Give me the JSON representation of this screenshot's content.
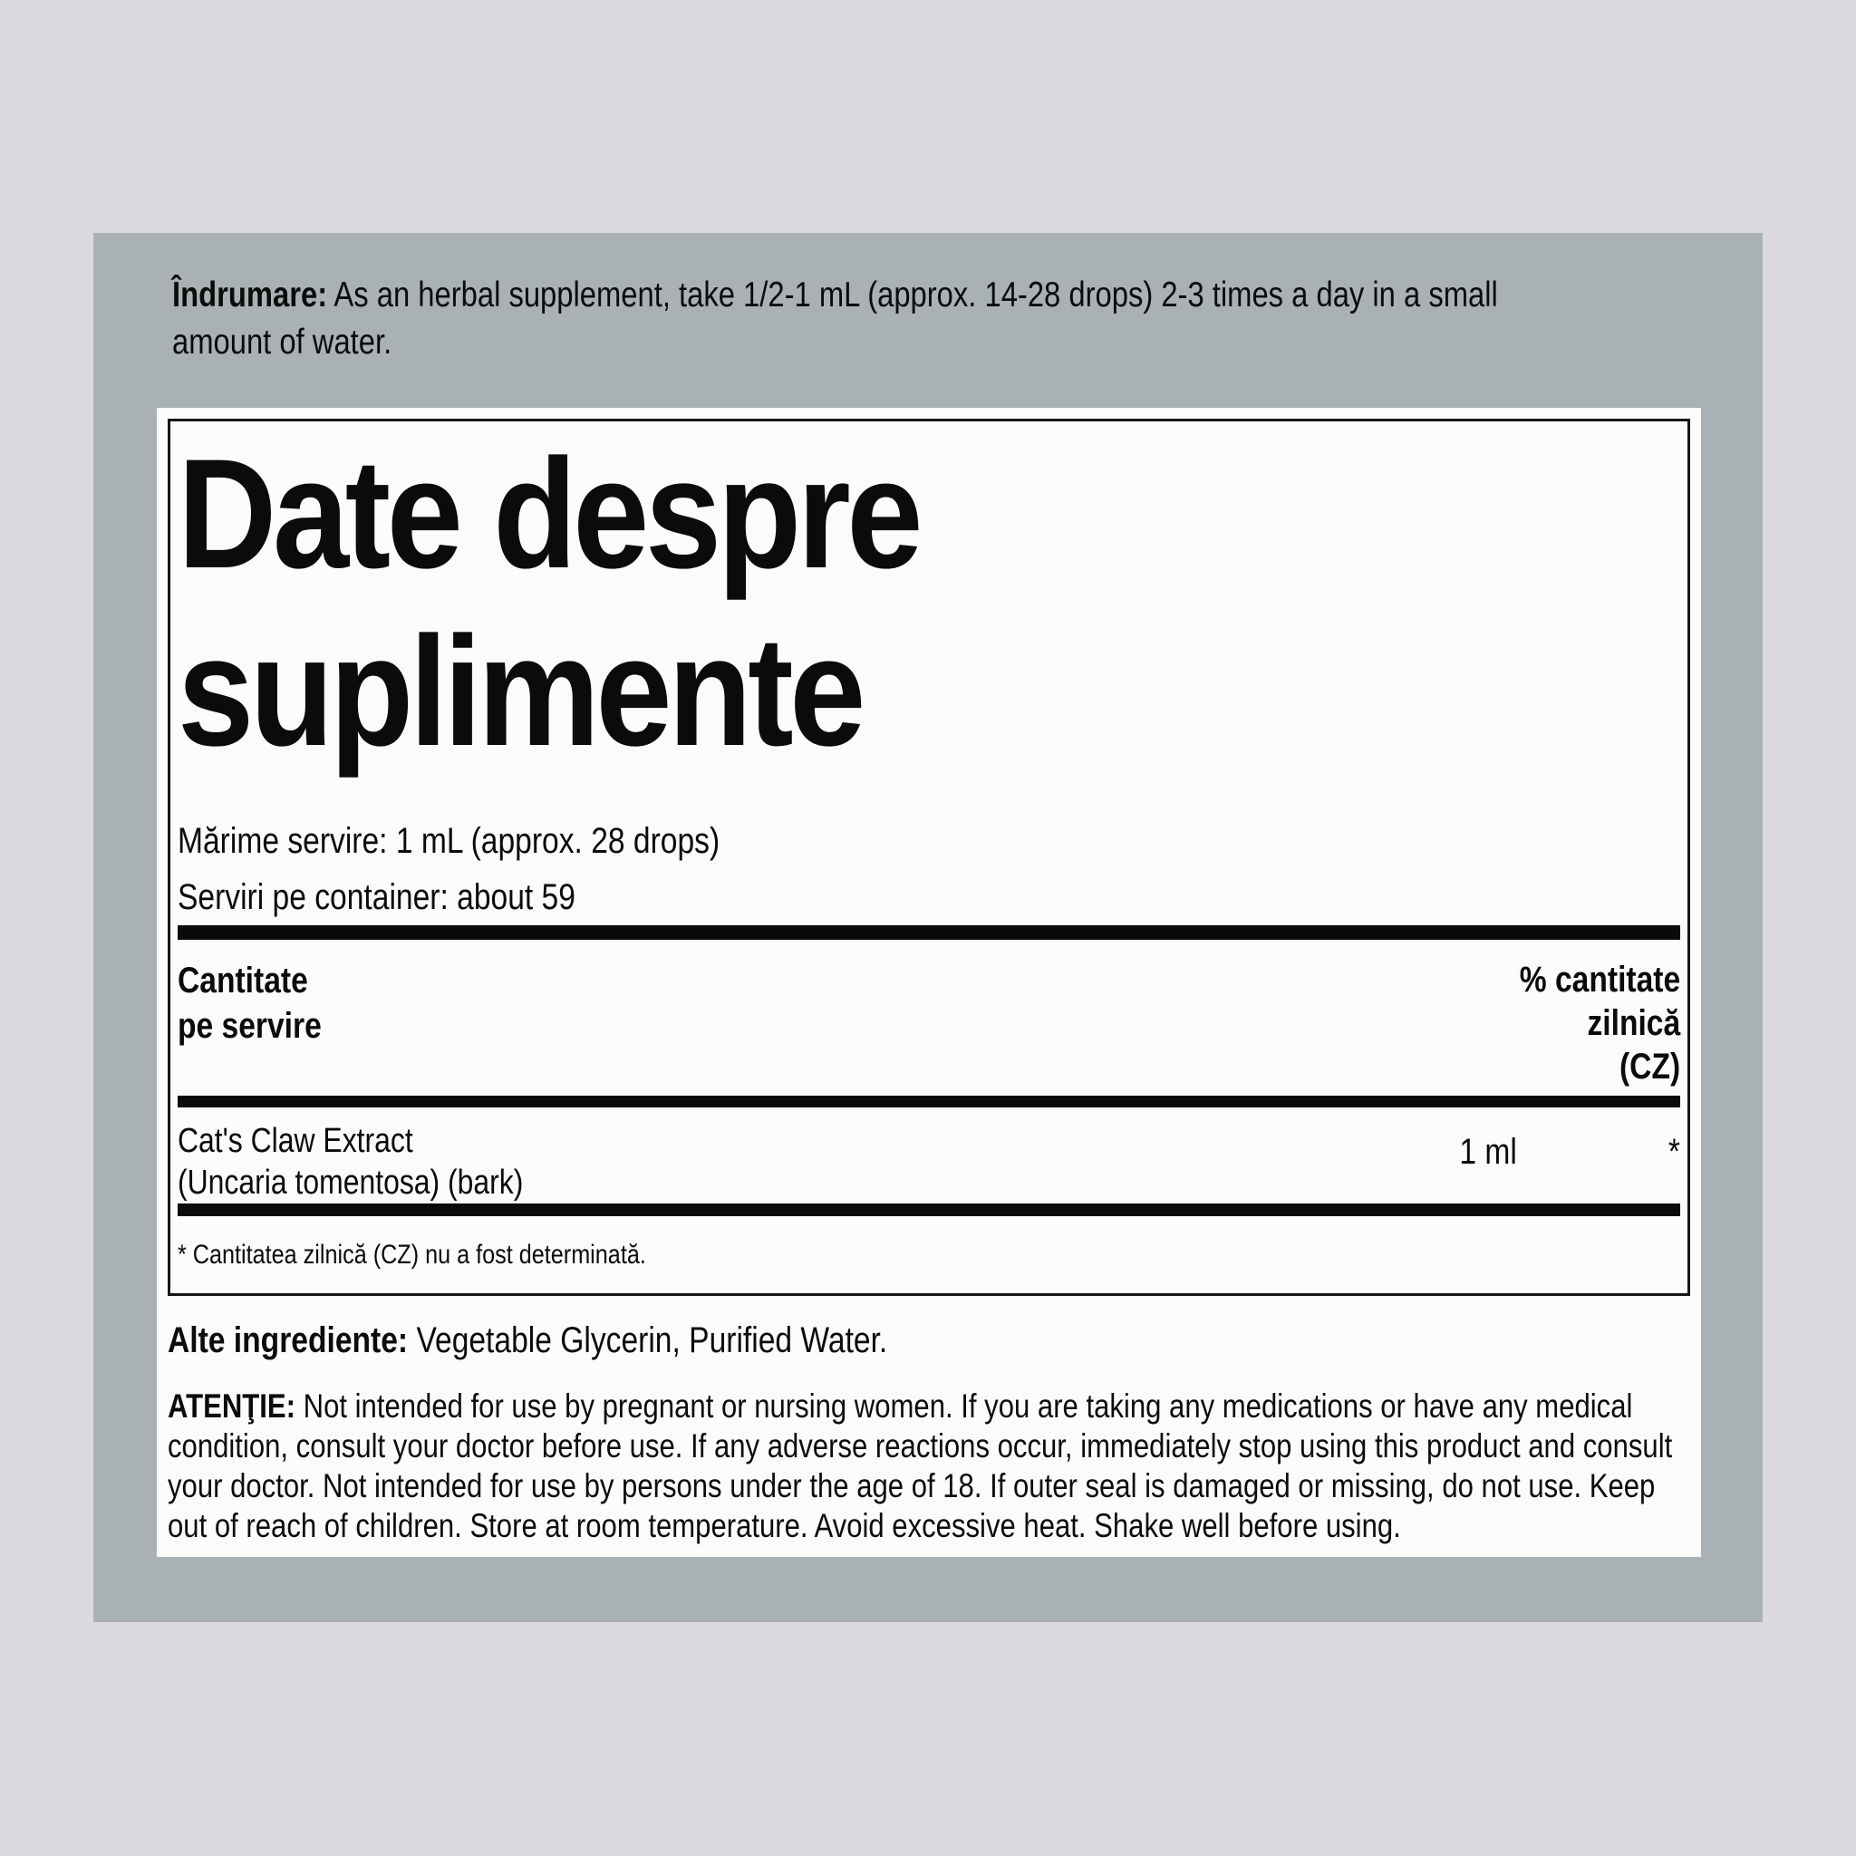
{
  "colors": {
    "outer_background": "#dcdade",
    "panel_background": "#a9b1b4",
    "label_background": "#fbfcf9",
    "text": "#0b0b0b"
  },
  "directions": {
    "label": "Îndrumare:",
    "lines": [
      "As an herbal supplement, take 1/2-1 mL (approx. 14-28 drops) 2-3 times a day in a small",
      "amount of water."
    ]
  },
  "facts": {
    "title_lines": [
      "Date despre",
      "suplimente"
    ],
    "serving_size": "Mărime servire: 1 mL (approx. 28 drops)",
    "servings_per_container": "Serviri pe container: about 59",
    "amount_header_lines": [
      "Cantitate",
      "pe servire"
    ],
    "dv_header_lines": [
      "% cantitate",
      "zilnică",
      "(CZ)"
    ],
    "rows": [
      {
        "name_lines": [
          "Cat's Claw Extract",
          "(Uncaria tomentosa) (bark)"
        ],
        "amount": "1 ml",
        "dv": "*"
      }
    ],
    "footnote": "* Cantitatea zilnică (CZ) nu a fost determinată."
  },
  "other_ingredients": {
    "label": "Alte ingrediente:",
    "text": "Vegetable Glycerin, Purified Water."
  },
  "warning": {
    "label": "ATENŢIE:",
    "lines": [
      "Not intended for use by pregnant or nursing women. If you are taking any medications or have any medical",
      "condition, consult your doctor before use. If any adverse reactions occur, immediately stop using this product and consult",
      "your doctor. Not intended for use by persons under the age of 18. If outer seal is damaged or missing, do not use. Keep",
      "out of reach of children. Store at room temperature. Avoid excessive heat. Shake well before using."
    ]
  }
}
